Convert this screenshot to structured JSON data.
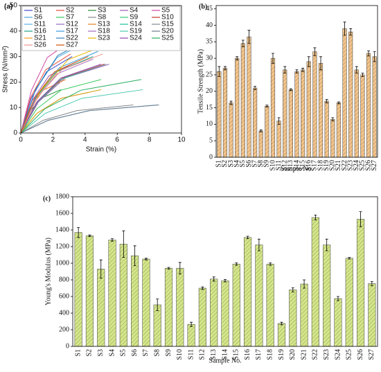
{
  "chart_data": [
    {
      "type": "line",
      "panel_label": "(a)",
      "x_label": "Strain (%)",
      "y_label": "Stress (N/mm²)",
      "xlim": [
        0,
        10
      ],
      "xticks": [
        0,
        2,
        4,
        6,
        8,
        10
      ],
      "ylim": [
        0,
        50
      ],
      "yticks": [
        0,
        10,
        20,
        30,
        40,
        50
      ],
      "series": [
        {
          "name": "S1",
          "color": "#3f48cc",
          "x": [
            0,
            0.64,
            1.6,
            3.2
          ],
          "values": [
            0,
            13.5,
            24,
            30
          ]
        },
        {
          "name": "S2",
          "color": "#e84c3d",
          "x": [
            0,
            0.62,
            1.55,
            3.1
          ],
          "values": [
            0,
            14,
            24.8,
            31
          ]
        },
        {
          "name": "S3",
          "color": "#2a8f3a",
          "x": [
            0,
            0.5,
            1.25,
            2.5
          ],
          "values": [
            0,
            7.7,
            13.6,
            17
          ]
        },
        {
          "name": "S4",
          "color": "#9b59b6",
          "x": [
            0,
            0.7,
            1.75,
            3.5
          ],
          "values": [
            0,
            12.6,
            22.4,
            28
          ]
        },
        {
          "name": "S5",
          "color": "#d147a3",
          "x": [
            0,
            0.66,
            1.65,
            3.3
          ],
          "values": [
            0,
            16.7,
            29.6,
            37
          ]
        },
        {
          "name": "S6",
          "color": "#4aa3df",
          "x": [
            0,
            0.9,
            2.25,
            4.5
          ],
          "values": [
            0,
            16.7,
            29.6,
            37
          ]
        },
        {
          "name": "S7",
          "color": "#34c759",
          "x": [
            0,
            1,
            2.5,
            5
          ],
          "values": [
            0,
            9.5,
            16.8,
            21
          ]
        },
        {
          "name": "S8",
          "color": "#888888",
          "x": [
            0,
            1.4,
            3.5,
            7
          ],
          "values": [
            0,
            5,
            8.8,
            11
          ]
        },
        {
          "name": "S9",
          "color": "#2ecc71",
          "x": [
            0,
            1,
            2.5,
            5
          ],
          "values": [
            0,
            7.7,
            13.6,
            17
          ]
        },
        {
          "name": "S10",
          "color": "#c0392b",
          "x": [
            0,
            1.04,
            2.6,
            5.2
          ],
          "values": [
            0,
            12.2,
            21.6,
            27
          ]
        },
        {
          "name": "S11",
          "color": "#5dade2",
          "x": [
            0,
            1.7,
            4.25,
            8.5
          ],
          "values": [
            0,
            5,
            8.8,
            11
          ]
        },
        {
          "name": "S12",
          "color": "#8e6bbf",
          "x": [
            0,
            1.1,
            2.75,
            5.5
          ],
          "values": [
            0,
            12.2,
            21.6,
            27
          ]
        },
        {
          "name": "S13",
          "color": "#e67e22",
          "x": [
            0,
            0.56,
            1.4,
            2.8
          ],
          "values": [
            0,
            9.5,
            16.8,
            21
          ]
        },
        {
          "name": "S14",
          "color": "#1abc9c",
          "x": [
            0,
            0.96,
            2.4,
            4.8
          ],
          "values": [
            0,
            11.7,
            20.8,
            26
          ]
        },
        {
          "name": "S15",
          "color": "#7f8c8d",
          "x": [
            0,
            1.06,
            2.65,
            5.3
          ],
          "values": [
            0,
            12.2,
            21.6,
            27
          ]
        },
        {
          "name": "S16",
          "color": "#16a085",
          "x": [
            0,
            0.9,
            2.25,
            4.5
          ],
          "values": [
            0,
            13.5,
            24,
            30
          ]
        },
        {
          "name": "S17",
          "color": "#3498db",
          "x": [
            0,
            0.96,
            2.4,
            4.8
          ],
          "values": [
            0,
            14.4,
            25.6,
            32
          ]
        },
        {
          "name": "S18",
          "color": "#a569bd",
          "x": [
            0,
            0.9,
            2.25,
            4.5
          ],
          "values": [
            0,
            13,
            23.2,
            29
          ]
        },
        {
          "name": "S19",
          "color": "#48c9b0",
          "x": [
            0,
            1.52,
            3.8,
            7.6
          ],
          "values": [
            0,
            7.7,
            13.6,
            17
          ]
        },
        {
          "name": "S20",
          "color": "#6c7a89",
          "x": [
            0,
            1.72,
            4.3,
            8.6
          ],
          "values": [
            0,
            5,
            8.8,
            11
          ]
        },
        {
          "name": "S21",
          "color": "#f39c12",
          "x": [
            0,
            1,
            2.5,
            5
          ],
          "values": [
            0,
            7.7,
            13.6,
            17
          ]
        },
        {
          "name": "S22",
          "color": "#2980b9",
          "x": [
            0,
            0.92,
            2.3,
            4.6
          ],
          "values": [
            0,
            17.1,
            30.4,
            38
          ]
        },
        {
          "name": "S23",
          "color": "#e5b800",
          "x": [
            0,
            1.18,
            2.95,
            5.9
          ],
          "values": [
            0,
            16.2,
            28.8,
            36
          ]
        },
        {
          "name": "S24",
          "color": "#8e44ad",
          "x": [
            0,
            1,
            2.5,
            5
          ],
          "values": [
            0,
            12.2,
            21.6,
            27
          ]
        },
        {
          "name": "S25",
          "color": "#27ae60",
          "x": [
            0,
            1.5,
            3.75,
            7.5
          ],
          "values": [
            0,
            9.5,
            16.8,
            21
          ]
        },
        {
          "name": "S26",
          "color": "#f1948a",
          "x": [
            0,
            1.02,
            2.55,
            5.1
          ],
          "values": [
            0,
            14,
            24.8,
            31
          ]
        },
        {
          "name": "S27",
          "color": "#d35400",
          "x": [
            0,
            0.84,
            2.1,
            4.2
          ],
          "values": [
            0,
            13.5,
            24,
            30
          ]
        }
      ]
    },
    {
      "type": "bar",
      "panel_label": "(b)",
      "x_label": "Sample No.",
      "y_label": "Tensile Strength (MPa)",
      "color": "#f3c58d",
      "ylim": [
        0,
        46
      ],
      "yticks": [
        0,
        5,
        10,
        15,
        20,
        25,
        30,
        35,
        40,
        45
      ],
      "categories": [
        "S1",
        "S2",
        "S3",
        "S4",
        "S5",
        "S6",
        "S7",
        "S8",
        "S9",
        "S10",
        "S11",
        "S12",
        "S13",
        "S14",
        "S15",
        "S16",
        "S17",
        "S18",
        "S19",
        "S20",
        "S21",
        "S22",
        "S23",
        "S24",
        "S25",
        "S26",
        "S27"
      ],
      "values": [
        26,
        27,
        16.5,
        30,
        34.5,
        36.5,
        21,
        8,
        15.5,
        30,
        11,
        26.5,
        20.5,
        26,
        26.5,
        29,
        32,
        28.5,
        17,
        11.5,
        16.5,
        39,
        38,
        26.5,
        25,
        31.5,
        30.5
      ],
      "errors": [
        1.5,
        0.5,
        0.5,
        0.5,
        1,
        2,
        0.5,
        0.3,
        0.3,
        1.5,
        1,
        1,
        0.3,
        0.5,
        0.5,
        1.5,
        1.2,
        2,
        0.5,
        0.5,
        0.3,
        2,
        1,
        1,
        0.5,
        0.8,
        1.5
      ]
    },
    {
      "type": "bar",
      "panel_label": "(c)",
      "x_label": "Sample No.",
      "y_label": "Young's Modulus (MPa)",
      "color": "#d4e68c",
      "ylim": [
        0,
        1800
      ],
      "yticks": [
        0,
        200,
        400,
        600,
        800,
        1000,
        1200,
        1400,
        1600,
        1800
      ],
      "categories": [
        "S1",
        "S2",
        "S3",
        "S4",
        "S5",
        "S6",
        "S7",
        "S8",
        "S9",
        "S10",
        "S11",
        "S12",
        "S13",
        "S14",
        "S15",
        "S16",
        "S17",
        "S18",
        "S19",
        "S20",
        "S21",
        "S22",
        "S23",
        "S24",
        "S25",
        "S26",
        "S27"
      ],
      "values": [
        1370,
        1330,
        930,
        1280,
        1230,
        1090,
        1050,
        500,
        940,
        940,
        265,
        700,
        810,
        790,
        990,
        1310,
        1220,
        990,
        275,
        680,
        750,
        1550,
        1220,
        575,
        1060,
        1530,
        755
      ],
      "errors": [
        60,
        10,
        110,
        15,
        160,
        120,
        10,
        70,
        10,
        70,
        25,
        15,
        25,
        15,
        15,
        15,
        70,
        15,
        15,
        25,
        50,
        30,
        70,
        25,
        10,
        90,
        25
      ]
    }
  ]
}
